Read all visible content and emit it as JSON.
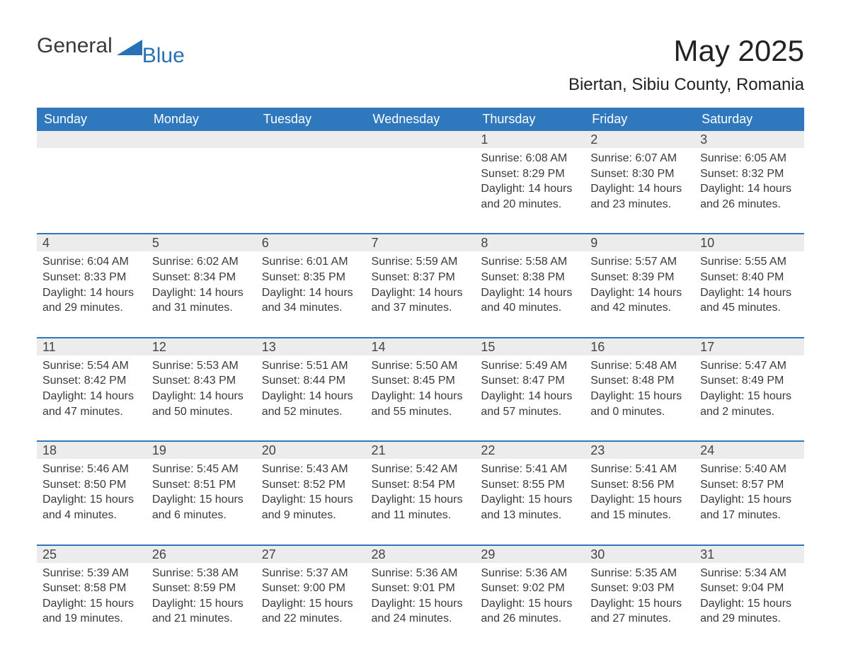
{
  "logo": {
    "word1": "General",
    "word2": "Blue"
  },
  "title": "May 2025",
  "location": "Biertan, Sibiu County, Romania",
  "header_bg": "#2f78bd",
  "header_fg": "#ffffff",
  "daynum_bg": "#ececec",
  "rule_color": "#2f78bd",
  "text_color": "#3a3a3a",
  "accent_color": "#2871b6",
  "day_headers": [
    "Sunday",
    "Monday",
    "Tuesday",
    "Wednesday",
    "Thursday",
    "Friday",
    "Saturday"
  ],
  "weeks": [
    [
      null,
      null,
      null,
      null,
      {
        "n": "1",
        "sunrise": "Sunrise: 6:08 AM",
        "sunset": "Sunset: 8:29 PM",
        "daylight": "Daylight: 14 hours and 20 minutes."
      },
      {
        "n": "2",
        "sunrise": "Sunrise: 6:07 AM",
        "sunset": "Sunset: 8:30 PM",
        "daylight": "Daylight: 14 hours and 23 minutes."
      },
      {
        "n": "3",
        "sunrise": "Sunrise: 6:05 AM",
        "sunset": "Sunset: 8:32 PM",
        "daylight": "Daylight: 14 hours and 26 minutes."
      }
    ],
    [
      {
        "n": "4",
        "sunrise": "Sunrise: 6:04 AM",
        "sunset": "Sunset: 8:33 PM",
        "daylight": "Daylight: 14 hours and 29 minutes."
      },
      {
        "n": "5",
        "sunrise": "Sunrise: 6:02 AM",
        "sunset": "Sunset: 8:34 PM",
        "daylight": "Daylight: 14 hours and 31 minutes."
      },
      {
        "n": "6",
        "sunrise": "Sunrise: 6:01 AM",
        "sunset": "Sunset: 8:35 PM",
        "daylight": "Daylight: 14 hours and 34 minutes."
      },
      {
        "n": "7",
        "sunrise": "Sunrise: 5:59 AM",
        "sunset": "Sunset: 8:37 PM",
        "daylight": "Daylight: 14 hours and 37 minutes."
      },
      {
        "n": "8",
        "sunrise": "Sunrise: 5:58 AM",
        "sunset": "Sunset: 8:38 PM",
        "daylight": "Daylight: 14 hours and 40 minutes."
      },
      {
        "n": "9",
        "sunrise": "Sunrise: 5:57 AM",
        "sunset": "Sunset: 8:39 PM",
        "daylight": "Daylight: 14 hours and 42 minutes."
      },
      {
        "n": "10",
        "sunrise": "Sunrise: 5:55 AM",
        "sunset": "Sunset: 8:40 PM",
        "daylight": "Daylight: 14 hours and 45 minutes."
      }
    ],
    [
      {
        "n": "11",
        "sunrise": "Sunrise: 5:54 AM",
        "sunset": "Sunset: 8:42 PM",
        "daylight": "Daylight: 14 hours and 47 minutes."
      },
      {
        "n": "12",
        "sunrise": "Sunrise: 5:53 AM",
        "sunset": "Sunset: 8:43 PM",
        "daylight": "Daylight: 14 hours and 50 minutes."
      },
      {
        "n": "13",
        "sunrise": "Sunrise: 5:51 AM",
        "sunset": "Sunset: 8:44 PM",
        "daylight": "Daylight: 14 hours and 52 minutes."
      },
      {
        "n": "14",
        "sunrise": "Sunrise: 5:50 AM",
        "sunset": "Sunset: 8:45 PM",
        "daylight": "Daylight: 14 hours and 55 minutes."
      },
      {
        "n": "15",
        "sunrise": "Sunrise: 5:49 AM",
        "sunset": "Sunset: 8:47 PM",
        "daylight": "Daylight: 14 hours and 57 minutes."
      },
      {
        "n": "16",
        "sunrise": "Sunrise: 5:48 AM",
        "sunset": "Sunset: 8:48 PM",
        "daylight": "Daylight: 15 hours and 0 minutes."
      },
      {
        "n": "17",
        "sunrise": "Sunrise: 5:47 AM",
        "sunset": "Sunset: 8:49 PM",
        "daylight": "Daylight: 15 hours and 2 minutes."
      }
    ],
    [
      {
        "n": "18",
        "sunrise": "Sunrise: 5:46 AM",
        "sunset": "Sunset: 8:50 PM",
        "daylight": "Daylight: 15 hours and 4 minutes."
      },
      {
        "n": "19",
        "sunrise": "Sunrise: 5:45 AM",
        "sunset": "Sunset: 8:51 PM",
        "daylight": "Daylight: 15 hours and 6 minutes."
      },
      {
        "n": "20",
        "sunrise": "Sunrise: 5:43 AM",
        "sunset": "Sunset: 8:52 PM",
        "daylight": "Daylight: 15 hours and 9 minutes."
      },
      {
        "n": "21",
        "sunrise": "Sunrise: 5:42 AM",
        "sunset": "Sunset: 8:54 PM",
        "daylight": "Daylight: 15 hours and 11 minutes."
      },
      {
        "n": "22",
        "sunrise": "Sunrise: 5:41 AM",
        "sunset": "Sunset: 8:55 PM",
        "daylight": "Daylight: 15 hours and 13 minutes."
      },
      {
        "n": "23",
        "sunrise": "Sunrise: 5:41 AM",
        "sunset": "Sunset: 8:56 PM",
        "daylight": "Daylight: 15 hours and 15 minutes."
      },
      {
        "n": "24",
        "sunrise": "Sunrise: 5:40 AM",
        "sunset": "Sunset: 8:57 PM",
        "daylight": "Daylight: 15 hours and 17 minutes."
      }
    ],
    [
      {
        "n": "25",
        "sunrise": "Sunrise: 5:39 AM",
        "sunset": "Sunset: 8:58 PM",
        "daylight": "Daylight: 15 hours and 19 minutes."
      },
      {
        "n": "26",
        "sunrise": "Sunrise: 5:38 AM",
        "sunset": "Sunset: 8:59 PM",
        "daylight": "Daylight: 15 hours and 21 minutes."
      },
      {
        "n": "27",
        "sunrise": "Sunrise: 5:37 AM",
        "sunset": "Sunset: 9:00 PM",
        "daylight": "Daylight: 15 hours and 22 minutes."
      },
      {
        "n": "28",
        "sunrise": "Sunrise: 5:36 AM",
        "sunset": "Sunset: 9:01 PM",
        "daylight": "Daylight: 15 hours and 24 minutes."
      },
      {
        "n": "29",
        "sunrise": "Sunrise: 5:36 AM",
        "sunset": "Sunset: 9:02 PM",
        "daylight": "Daylight: 15 hours and 26 minutes."
      },
      {
        "n": "30",
        "sunrise": "Sunrise: 5:35 AM",
        "sunset": "Sunset: 9:03 PM",
        "daylight": "Daylight: 15 hours and 27 minutes."
      },
      {
        "n": "31",
        "sunrise": "Sunrise: 5:34 AM",
        "sunset": "Sunset: 9:04 PM",
        "daylight": "Daylight: 15 hours and 29 minutes."
      }
    ]
  ]
}
